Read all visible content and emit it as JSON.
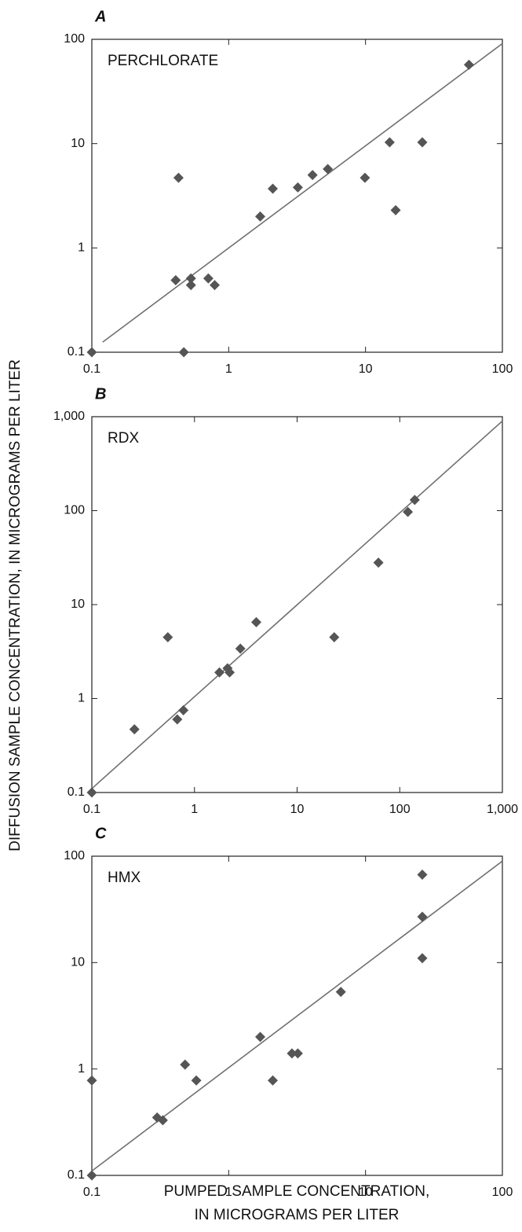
{
  "ylabel": "DIFFUSION SAMPLE CONCENTRATION, IN MICROGRAMS PER LITER",
  "xlabel": [
    "PUMPED SAMPLE CONCENTRATION,",
    "IN MICROGRAMS PER LITER"
  ],
  "chart_data": [
    {
      "type": "scatter",
      "panel_label": "A",
      "annotation": "PERCHLORATE",
      "log_scale": true,
      "color": "#555555",
      "x": [
        0.1,
        0.41,
        0.43,
        0.53,
        0.53,
        0.47,
        0.71,
        0.79,
        1.7,
        2.1,
        3.2,
        4.1,
        5.3,
        9.9,
        15,
        16.6,
        26,
        57
      ],
      "values": [
        0.1,
        0.49,
        4.7,
        0.51,
        0.44,
        0.1,
        0.51,
        0.44,
        2.0,
        3.7,
        3.8,
        5.0,
        5.7,
        4.7,
        10.3,
        2.3,
        10.3,
        57
      ],
      "reference_line": {
        "x": [
          0.12,
          100
        ],
        "y": [
          0.125,
          91
        ],
        "color": "#707070"
      },
      "xlim": [
        0.1,
        100
      ],
      "ylim": [
        0.1,
        100
      ],
      "xticks": [
        0.1,
        1,
        10,
        100
      ],
      "yticks": [
        0.1,
        1,
        10,
        100
      ]
    },
    {
      "type": "scatter",
      "panel_label": "B",
      "annotation": "RDX",
      "log_scale": true,
      "color": "#555555",
      "x": [
        0.1,
        0.26,
        0.55,
        0.68,
        0.78,
        1.75,
        2.1,
        2.2,
        2.8,
        4,
        23,
        62,
        120,
        140
      ],
      "values": [
        0.1,
        0.47,
        4.5,
        0.6,
        0.75,
        1.9,
        2.1,
        1.9,
        3.4,
        6.5,
        4.5,
        28,
        97,
        130
      ],
      "reference_line": {
        "x": [
          0.1,
          1000
        ],
        "y": [
          0.11,
          900
        ],
        "color": "#707070"
      },
      "xlim": [
        0.1,
        1000
      ],
      "ylim": [
        0.1,
        1000
      ],
      "xticks": [
        0.1,
        1,
        10,
        100,
        {
          "value": 1000,
          "label": "1,000"
        }
      ],
      "yticks": [
        0.1,
        1,
        10,
        100,
        {
          "value": 1000,
          "label": "1,000"
        }
      ]
    },
    {
      "type": "scatter",
      "panel_label": "C",
      "annotation": "HMX",
      "log_scale": true,
      "color": "#555555",
      "x": [
        0.1,
        0.1,
        0.3,
        0.33,
        0.48,
        0.58,
        1.7,
        2.1,
        2.9,
        3.2,
        6.6,
        26,
        26,
        26
      ],
      "values": [
        0.78,
        0.1,
        0.35,
        0.33,
        1.1,
        0.78,
        2.0,
        0.78,
        1.4,
        1.4,
        5.3,
        67,
        27,
        11
      ],
      "reference_line": {
        "x": [
          0.1,
          100
        ],
        "y": [
          0.11,
          90
        ],
        "color": "#707070"
      },
      "xlim": [
        0.1,
        100
      ],
      "ylim": [
        0.1,
        100
      ],
      "xticks": [
        0.1,
        1,
        10,
        100
      ],
      "yticks": [
        0.1,
        1,
        10,
        100
      ]
    }
  ]
}
